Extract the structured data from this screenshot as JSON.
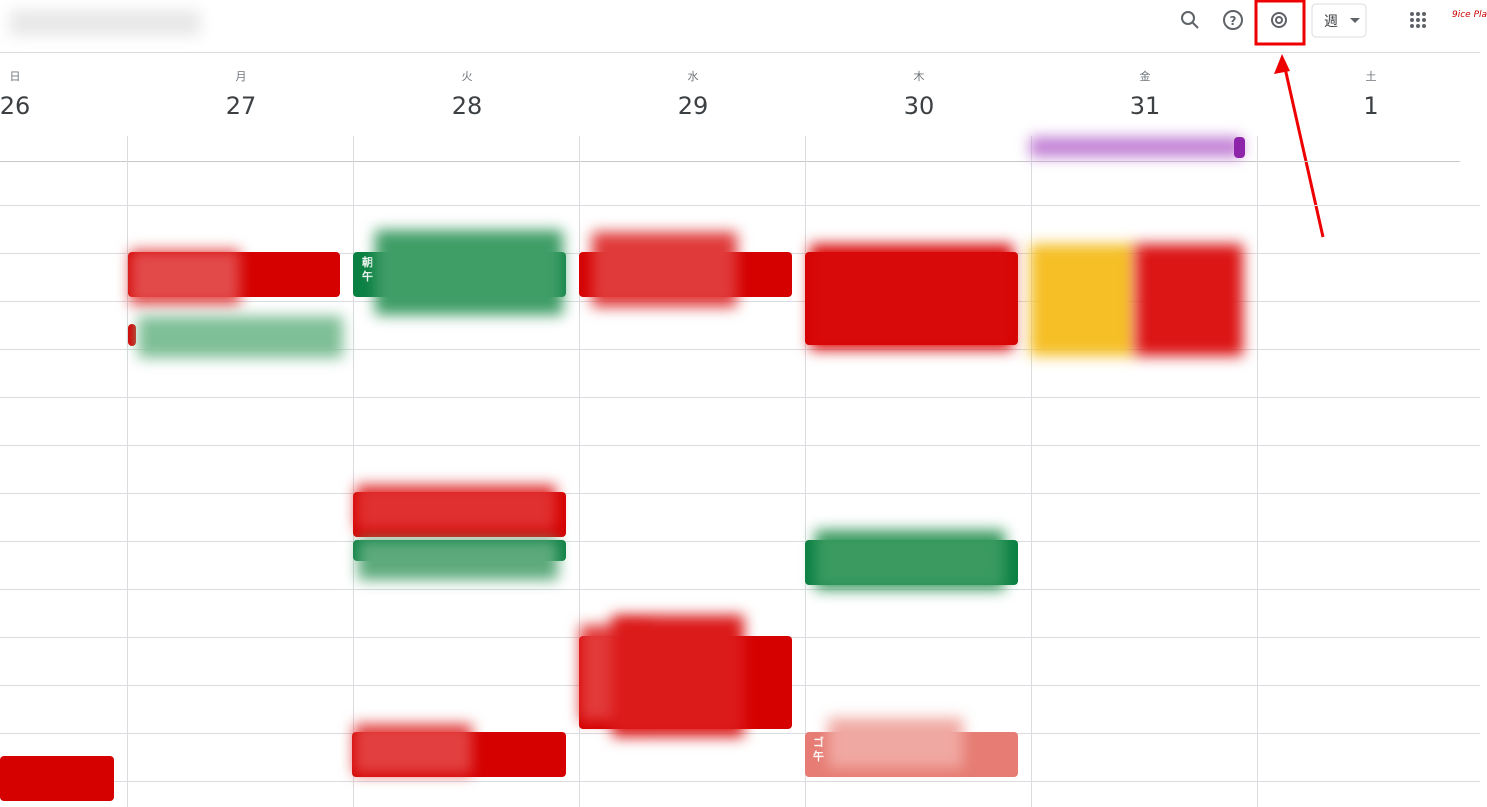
{
  "toolbar": {
    "view": "週",
    "logo": "9ice Pla"
  },
  "days": [
    {
      "weekday": "日",
      "date": "26"
    },
    {
      "weekday": "月",
      "date": "27"
    },
    {
      "weekday": "火",
      "date": "28"
    },
    {
      "weekday": "水",
      "date": "29"
    },
    {
      "weekday": "木",
      "date": "30"
    },
    {
      "weekday": "金",
      "date": "31"
    },
    {
      "weekday": "土",
      "date": "1"
    }
  ],
  "events": [
    {
      "line1": "朝",
      "line2": "午"
    },
    {
      "line1": "ゴ",
      "line2": "午"
    }
  ]
}
